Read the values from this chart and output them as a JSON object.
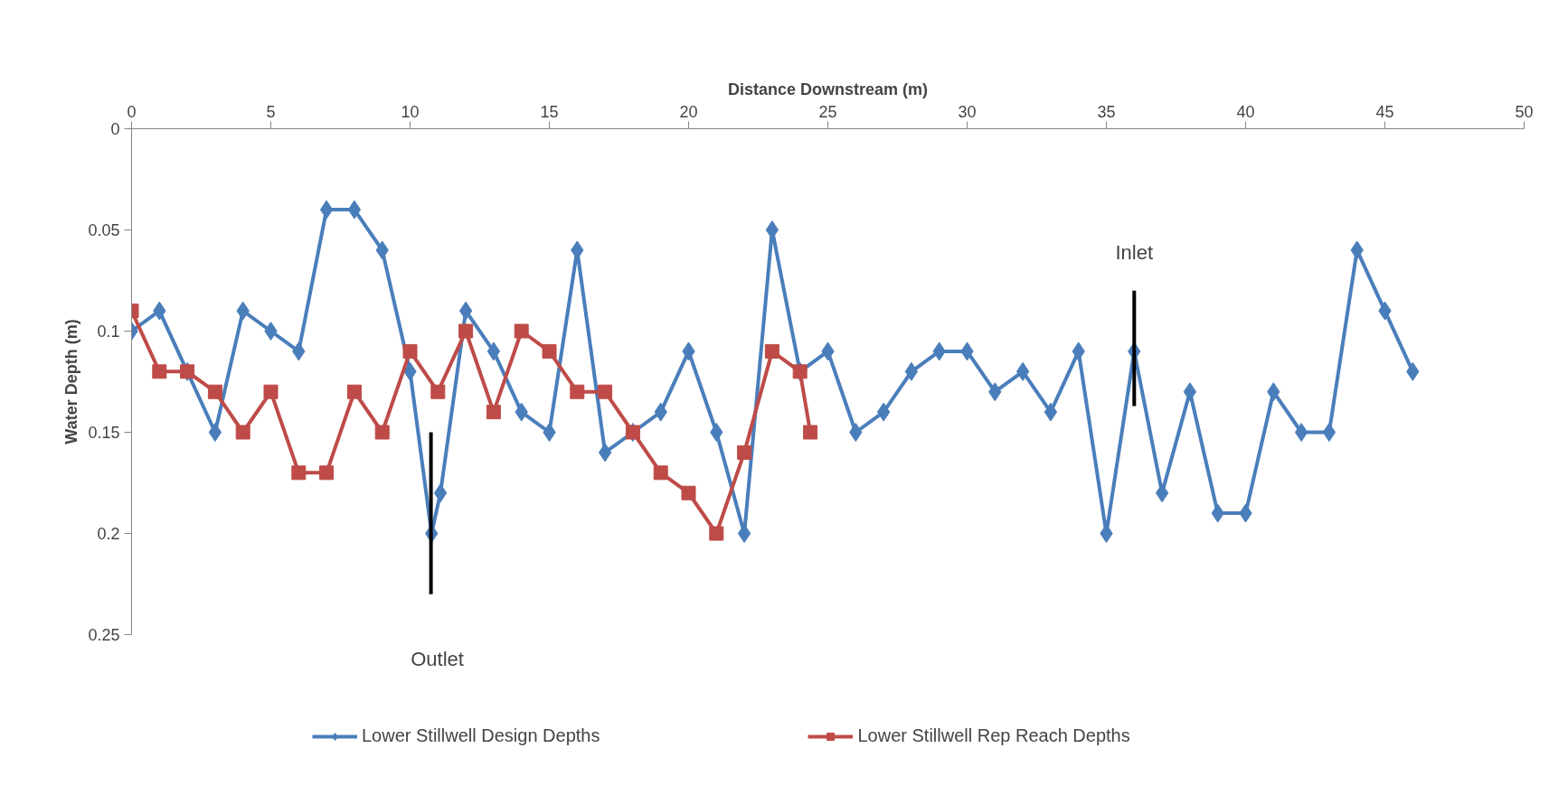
{
  "chart_data": {
    "type": "line",
    "xlabel": "Distance Downstream (m)",
    "ylabel": "Water Depth (m)",
    "xlim": [
      0,
      50
    ],
    "xticks": [
      0,
      5,
      10,
      15,
      20,
      25,
      30,
      35,
      40,
      45,
      50
    ],
    "ylim": [
      0.25,
      0
    ],
    "yticks": [
      0,
      0.05,
      0.1,
      0.15,
      0.2,
      0.25
    ],
    "grid": false,
    "legend": "bottom",
    "line_style": "solid",
    "series": [
      {
        "name": "Lower Stillwell Design Depths",
        "color": "#4a7ebb",
        "marker": "diamond",
        "x": [
          0,
          1,
          2,
          3,
          4,
          5,
          6,
          7,
          8,
          9,
          10,
          10.77,
          11.09,
          12,
          13,
          14,
          15,
          16,
          17,
          18,
          19,
          20,
          21,
          22,
          23,
          24,
          25,
          26,
          27,
          28,
          29,
          30,
          31,
          32,
          33,
          34,
          35,
          36,
          37,
          38,
          39,
          40,
          41,
          42,
          43,
          44,
          45,
          46
        ],
        "values": [
          0.1,
          0.09,
          0.12,
          0.15,
          0.09,
          0.1,
          0.11,
          0.04,
          0.04,
          0.06,
          0.12,
          0.2,
          0.18,
          0.09,
          0.11,
          0.14,
          0.15,
          0.06,
          0.16,
          0.15,
          0.14,
          0.11,
          0.15,
          0.2,
          0.05,
          0.12,
          0.11,
          0.15,
          0.14,
          0.12,
          0.11,
          0.11,
          0.13,
          0.12,
          0.14,
          0.11,
          0.2,
          0.11,
          0.18,
          0.13,
          0.19,
          0.19,
          0.13,
          0.15,
          0.15,
          0.06,
          0.09,
          0.12
        ]
      },
      {
        "name": "Lower Stillwell Rep Reach Depths",
        "color": "#be4b48",
        "marker": "square",
        "x": [
          0,
          1,
          2,
          3,
          4,
          5,
          6,
          7,
          8,
          9,
          10,
          11,
          12,
          13,
          14,
          15,
          16,
          17,
          18,
          19,
          20,
          21,
          22,
          23,
          24,
          24.37
        ],
        "values": [
          0.09,
          0.12,
          0.12,
          0.13,
          0.15,
          0.13,
          0.17,
          0.17,
          0.13,
          0.15,
          0.11,
          0.13,
          0.1,
          0.14,
          0.1,
          0.11,
          0.13,
          0.13,
          0.15,
          0.17,
          0.18,
          0.2,
          0.16,
          0.11,
          0.12,
          0.15
        ]
      }
    ],
    "ref_lines": [
      {
        "axis": "x",
        "value": 10.75,
        "label": "Outlet",
        "color": "#000000"
      },
      {
        "axis": "x",
        "value": 36,
        "label": "Inlet",
        "color": "#000000"
      }
    ]
  }
}
